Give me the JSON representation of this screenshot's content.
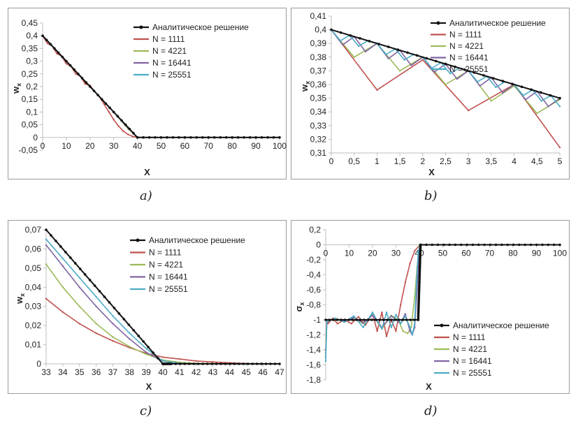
{
  "colors": {
    "analytic": "#111111",
    "n1111": "#c0504d",
    "n4221": "#9bbb59",
    "n16441": "#8064a2",
    "n25551": "#4bacc6",
    "frame": "#9a9a9a",
    "axis": "#bfbfbf"
  },
  "captions": [
    "a)",
    "b)",
    "c)",
    "d)"
  ],
  "chart_data": [
    {
      "type": "line",
      "ylabel": "w_x",
      "xlabel": "X",
      "xlim": [
        0,
        100
      ],
      "ylim": [
        -0.05,
        0.45
      ],
      "xticks": [
        "0",
        "10",
        "20",
        "30",
        "40",
        "50",
        "60",
        "70",
        "80",
        "90",
        "100"
      ],
      "yticks": [
        "-0,05",
        "0",
        "0,05",
        "0,1",
        "0,15",
        "0,2",
        "0,25",
        "0,3",
        "0,35",
        "0,4",
        "0,45"
      ],
      "legend_position": "top-right",
      "series": [
        {
          "name": "Аналитическое решение",
          "x": [
            0,
            40,
            100
          ],
          "y": [
            0.4,
            0,
            0
          ]
        },
        {
          "name": "N = 1111",
          "x": [
            0,
            2,
            4,
            6,
            8,
            10,
            12,
            14,
            16,
            18,
            20,
            22,
            24,
            26,
            28,
            30,
            32,
            34,
            36,
            38,
            40,
            100
          ],
          "y": [
            0.4,
            0.37,
            0.36,
            0.33,
            0.32,
            0.29,
            0.28,
            0.25,
            0.24,
            0.21,
            0.205,
            0.18,
            0.16,
            0.13,
            0.1,
            0.07,
            0.045,
            0.025,
            0.012,
            0.004,
            0,
            0
          ]
        },
        {
          "name": "N = 4221",
          "x": [
            0,
            10,
            20,
            30,
            36,
            40,
            100
          ],
          "y": [
            0.4,
            0.3,
            0.2,
            0.1,
            0.035,
            0,
            0
          ]
        },
        {
          "name": "N = 16441",
          "x": [
            0,
            10,
            20,
            30,
            36,
            40,
            100
          ],
          "y": [
            0.4,
            0.3,
            0.2,
            0.1,
            0.038,
            0,
            0
          ]
        },
        {
          "name": "N = 25551",
          "x": [
            0,
            10,
            20,
            30,
            36,
            40,
            100
          ],
          "y": [
            0.4,
            0.3,
            0.2,
            0.1,
            0.04,
            0,
            0
          ]
        }
      ]
    },
    {
      "type": "line",
      "ylabel": "w_x",
      "xlabel": "X",
      "xlim": [
        0,
        5
      ],
      "ylim": [
        0.31,
        0.41
      ],
      "xticks": [
        "0",
        "0,5",
        "1",
        "1,5",
        "2",
        "2,5",
        "3",
        "3,5",
        "4",
        "4,5",
        "5"
      ],
      "yticks": [
        "0,31",
        "0,32",
        "0,33",
        "0,34",
        "0,35",
        "0,36",
        "0,37",
        "0,38",
        "0,39",
        "0,4",
        "0,41"
      ],
      "legend_position": "top-right",
      "series": [
        {
          "name": "Аналитическое решение",
          "x": [
            0,
            5
          ],
          "y": [
            0.4,
            0.35
          ]
        },
        {
          "name": "N = 1111",
          "x": [
            0,
            1,
            2,
            3,
            4,
            5
          ],
          "y": [
            0.4,
            0.356,
            0.378,
            0.341,
            0.36,
            0.314
          ]
        },
        {
          "name": "N = 4221",
          "x": [
            0,
            0.5,
            1,
            1.5,
            2,
            2.5,
            3,
            3.5,
            4,
            4.5,
            5
          ],
          "y": [
            0.4,
            0.38,
            0.39,
            0.37,
            0.38,
            0.36,
            0.37,
            0.348,
            0.359,
            0.339,
            0.349
          ]
        },
        {
          "name": "N = 16441",
          "x": [
            0,
            0.25,
            0.5,
            0.75,
            1,
            1.25,
            1.5,
            1.75,
            2,
            2.25,
            2.5,
            2.75,
            3,
            3.25,
            3.5,
            3.75,
            4,
            4.25,
            4.5,
            4.75,
            5
          ],
          "y": [
            0.4,
            0.389,
            0.395,
            0.384,
            0.39,
            0.379,
            0.385,
            0.374,
            0.38,
            0.369,
            0.375,
            0.364,
            0.37,
            0.359,
            0.365,
            0.354,
            0.36,
            0.349,
            0.355,
            0.344,
            0.35
          ]
        },
        {
          "name": "N = 25551",
          "x": [
            0,
            0.2,
            0.4,
            0.6,
            0.8,
            1,
            1.2,
            1.4,
            1.6,
            1.8,
            2,
            2.2,
            2.4,
            2.6,
            2.8,
            3,
            3.2,
            3.4,
            3.6,
            3.8,
            4,
            4.2,
            4.4,
            4.6,
            4.8,
            5
          ],
          "y": [
            0.4,
            0.392,
            0.396,
            0.388,
            0.392,
            0.39,
            0.382,
            0.386,
            0.378,
            0.382,
            0.38,
            0.372,
            0.376,
            0.368,
            0.372,
            0.37,
            0.362,
            0.366,
            0.358,
            0.362,
            0.36,
            0.352,
            0.356,
            0.348,
            0.352,
            0.344
          ]
        }
      ]
    },
    {
      "type": "line",
      "ylabel": "w_x",
      "xlabel": "X",
      "xlim": [
        33,
        47
      ],
      "ylim": [
        0,
        0.07
      ],
      "xticks": [
        "33",
        "34",
        "35",
        "36",
        "37",
        "38",
        "39",
        "40",
        "41",
        "42",
        "43",
        "44",
        "45",
        "46",
        "47"
      ],
      "yticks": [
        "0",
        "0,01",
        "0,02",
        "0,03",
        "0,04",
        "0,05",
        "0,06",
        "0,07"
      ],
      "legend_position": "top-right",
      "series": [
        {
          "name": "Аналитическое решение",
          "x": [
            33,
            40,
            40.5,
            47
          ],
          "y": [
            0.07,
            0,
            0,
            0
          ]
        },
        {
          "name": "N = 1111",
          "x": [
            33,
            34,
            35,
            36,
            37,
            38,
            39,
            40,
            41,
            42,
            43,
            44,
            45,
            46,
            47
          ],
          "y": [
            0.034,
            0.027,
            0.021,
            0.016,
            0.012,
            0.0085,
            0.0055,
            0.0035,
            0.0025,
            0.0015,
            0.001,
            0.0005,
            0.0002,
            0.0001,
            0
          ]
        },
        {
          "name": "N = 4221",
          "x": [
            33,
            34,
            35,
            36,
            37,
            38,
            39,
            40,
            41,
            42,
            43,
            44,
            45,
            46,
            47
          ],
          "y": [
            0.052,
            0.04,
            0.03,
            0.021,
            0.014,
            0.009,
            0.005,
            0.002,
            0.0008,
            0.0003,
            0.0001,
            0,
            0,
            0,
            0
          ]
        },
        {
          "name": "N = 16441",
          "x": [
            33,
            34,
            35,
            36,
            37,
            38,
            39,
            40,
            41,
            42,
            43,
            44,
            45,
            46,
            47
          ],
          "y": [
            0.062,
            0.051,
            0.04,
            0.03,
            0.021,
            0.013,
            0.006,
            0.0015,
            0.0003,
            0,
            0,
            0,
            0,
            0,
            0
          ]
        },
        {
          "name": "N = 25551",
          "x": [
            33,
            34,
            35,
            36,
            37,
            38,
            39,
            40,
            41,
            42,
            43,
            44,
            45,
            46,
            47
          ],
          "y": [
            0.065,
            0.055,
            0.045,
            0.035,
            0.025,
            0.016,
            0.008,
            0.0015,
            0.0002,
            0,
            0,
            0,
            0,
            0,
            0
          ]
        }
      ]
    },
    {
      "type": "line",
      "ylabel": "σ_x",
      "xlabel": "X",
      "xlim": [
        0,
        100
      ],
      "ylim": [
        -1.8,
        0.2
      ],
      "xticks": [
        "0",
        "10",
        "20",
        "30",
        "40",
        "50",
        "60",
        "70",
        "80",
        "90",
        "100"
      ],
      "yticks": [
        "-1,8",
        "-1,6",
        "-1,4",
        "-1,2",
        "-1",
        "-0,8",
        "-0,6",
        "-0,4",
        "-0,2",
        "0",
        "0,2"
      ],
      "legend_position": "bottom-right",
      "series": [
        {
          "name": "Аналитическое решение",
          "x": [
            0,
            39.5,
            40,
            40.5,
            100
          ],
          "y": [
            -1,
            -1,
            -0.5,
            0,
            0
          ]
        },
        {
          "name": "N = 1111",
          "x": [
            0,
            0.5,
            1,
            3,
            5,
            8,
            11,
            14,
            17,
            20,
            22,
            24,
            26,
            28,
            30,
            32,
            34,
            36,
            38,
            40,
            42,
            100
          ],
          "y": [
            -1.4,
            -1.0,
            -1.05,
            -0.98,
            -1.05,
            -1.0,
            -1.05,
            -0.96,
            -1.07,
            -0.92,
            -1.15,
            -0.9,
            -1.22,
            -1.0,
            -1.15,
            -0.8,
            -0.5,
            -0.25,
            -0.08,
            -0.01,
            0,
            0
          ]
        },
        {
          "name": "N = 4221",
          "x": [
            0,
            0.5,
            1,
            4,
            8,
            12,
            16,
            20,
            24,
            28,
            31,
            33,
            35,
            36.5,
            38,
            39,
            40,
            41,
            100
          ],
          "y": [
            -1.45,
            -1.0,
            -1.02,
            -0.98,
            -1.02,
            -0.97,
            -1.05,
            -0.93,
            -1.12,
            -0.94,
            -1.0,
            -1.15,
            -1.18,
            -1.1,
            -0.7,
            -0.3,
            -0.02,
            0,
            0
          ]
        },
        {
          "name": "N = 16441",
          "x": [
            0,
            0.5,
            1,
            4,
            8,
            12,
            16,
            20,
            24,
            28,
            32,
            34,
            36,
            37,
            38,
            39,
            39.6,
            40.2,
            41,
            100
          ],
          "y": [
            -1.5,
            -1.0,
            -1.02,
            -0.98,
            -1.02,
            -0.97,
            -1.04,
            -0.94,
            -1.1,
            -0.95,
            -1.05,
            -0.92,
            -1.15,
            -1.2,
            -1.1,
            -0.6,
            -0.2,
            -0.02,
            0,
            0
          ]
        },
        {
          "name": "N = 25551",
          "x": [
            0,
            0.5,
            1,
            4,
            8,
            12,
            16,
            20,
            24,
            26,
            28,
            30,
            32,
            34,
            36,
            37,
            38,
            38.8,
            39.5,
            40.2,
            41,
            100
          ],
          "y": [
            -1.55,
            -1.0,
            -1.02,
            -0.98,
            -1.03,
            -0.95,
            -1.1,
            -0.9,
            -1.12,
            -0.9,
            -1.1,
            -0.93,
            -1.05,
            -0.95,
            -1.1,
            -1.2,
            -1.05,
            -0.5,
            -0.1,
            -0.01,
            0,
            0
          ]
        }
      ]
    }
  ]
}
